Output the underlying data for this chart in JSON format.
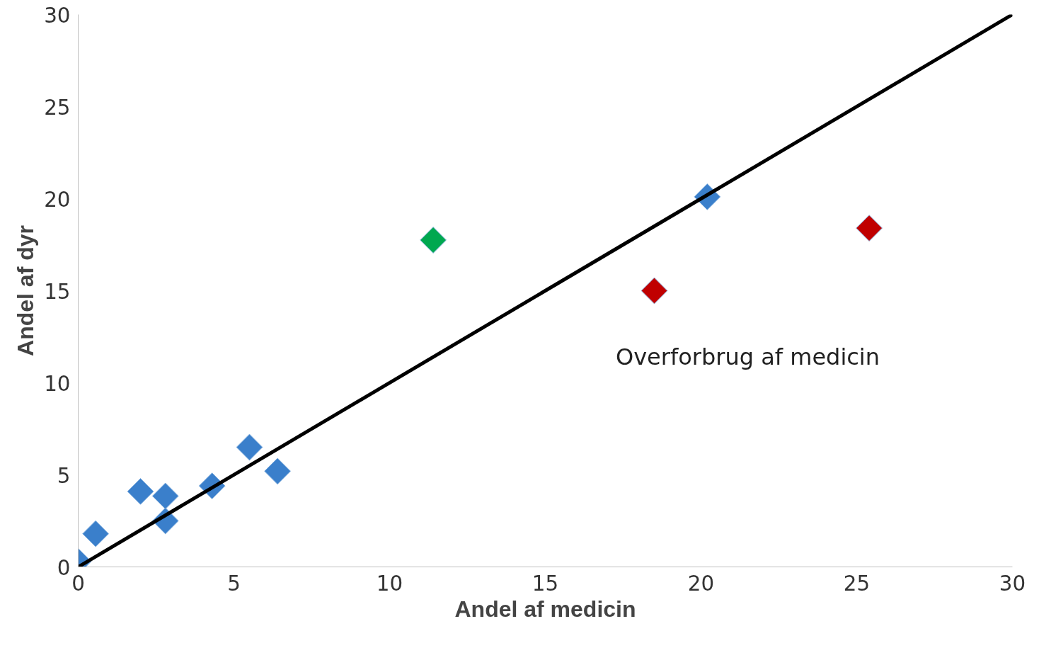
{
  "chart_data": {
    "type": "scatter",
    "xlabel": "Andel af medicin",
    "ylabel": "Andel af dyr",
    "xlim": [
      0,
      30
    ],
    "ylim": [
      0,
      30
    ],
    "xticks": [
      0,
      5,
      10,
      15,
      20,
      25,
      30
    ],
    "yticks": [
      0,
      5,
      10,
      15,
      20,
      25,
      30
    ],
    "grid": false,
    "marker": "diamond",
    "series": [
      {
        "color": "#3a7fcb",
        "x": [
          0,
          0.56,
          2.0,
          2.8,
          2.8,
          4.3,
          5.5,
          6.4,
          20.2
        ],
        "values": [
          0.3,
          1.8,
          4.1,
          3.85,
          2.5,
          4.4,
          6.5,
          5.2,
          20.1
        ]
      },
      {
        "color": "#00a84f",
        "x": [
          11.4
        ],
        "values": [
          17.75
        ]
      },
      {
        "color": "#c00000",
        "x": [
          18.5,
          25.4
        ],
        "values": [
          15.0,
          18.4
        ]
      },
      {
        "type": "line",
        "color": "#000000",
        "marker": "none",
        "line_style": "solid",
        "x": [
          0,
          30
        ],
        "values": [
          0,
          30
        ]
      }
    ],
    "annotations": [
      "Overforbrug af medicin"
    ]
  }
}
